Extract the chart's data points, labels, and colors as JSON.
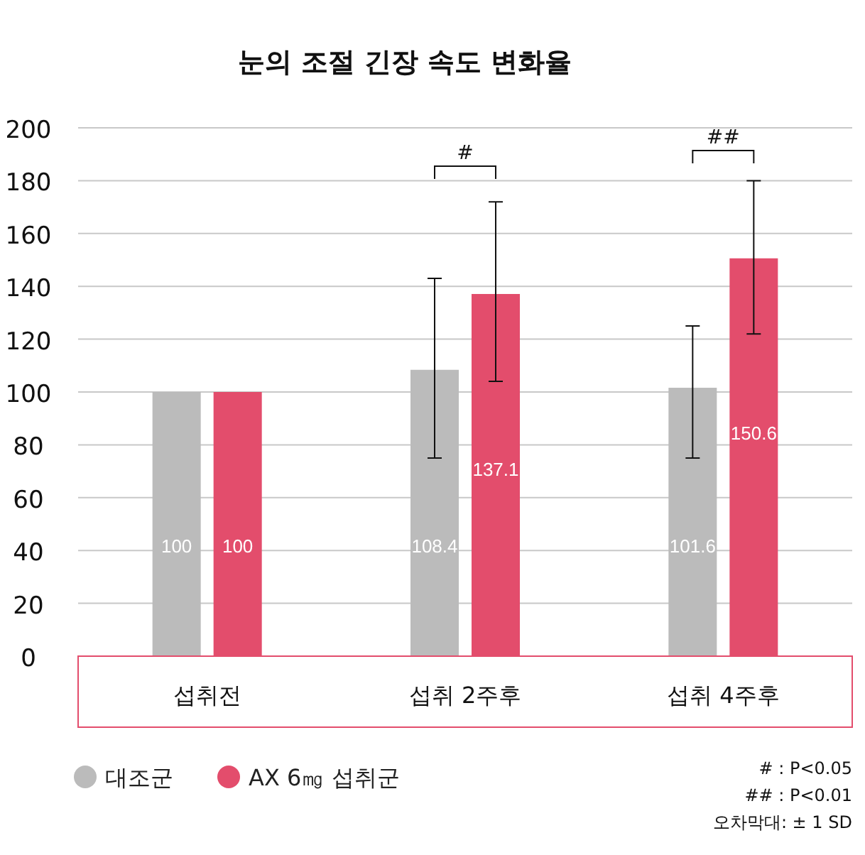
{
  "chart_data": {
    "type": "bar",
    "title": "눈의 조절 긴장 속도 변화율",
    "categories": [
      "섭취전",
      "섭취 2주후",
      "섭취 4주후"
    ],
    "series": [
      {
        "name": "대조군",
        "color": "#bbbbbb",
        "values": [
          100,
          108.4,
          101.6
        ],
        "errors": [
          null,
          [
            75,
            143
          ],
          [
            75,
            125
          ]
        ]
      },
      {
        "name": "AX 6㎎ 섭취군",
        "color": "#e34d6c",
        "values": [
          100,
          137.1,
          150.6
        ],
        "errors": [
          null,
          [
            104,
            172
          ],
          [
            122,
            180
          ]
        ]
      }
    ],
    "ylim": [
      0,
      200
    ],
    "yticks": [
      0,
      20,
      40,
      60,
      80,
      100,
      120,
      140,
      160,
      180,
      200
    ],
    "grid": "y",
    "legend": "bottom left",
    "data_labels": true,
    "annotations": [
      "#",
      "##",
      "# : P<0.05",
      "## : P<0.01",
      "오차막대: ± 1 SD"
    ]
  }
}
